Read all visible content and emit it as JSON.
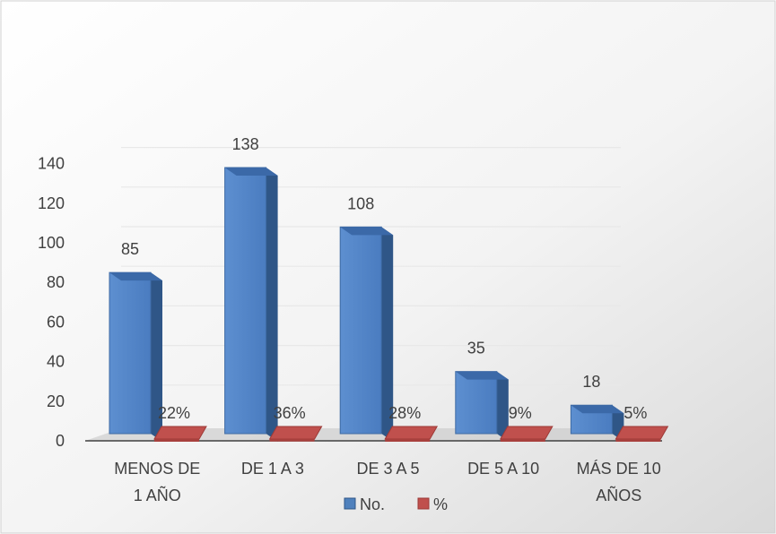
{
  "chart_data": {
    "type": "bar",
    "categories": [
      [
        "MENOS DE",
        "1 AÑO"
      ],
      [
        "DE 1 A 3"
      ],
      [
        "DE 3 A 5"
      ],
      [
        "DE 5 A 10"
      ],
      [
        "MÁS DE 10",
        "AÑOS"
      ]
    ],
    "series": [
      {
        "name": "No.",
        "values": [
          85,
          138,
          108,
          35,
          18
        ],
        "labels": [
          "85",
          "138",
          "108",
          "35",
          "18"
        ],
        "color": "#4f81bd"
      },
      {
        "name": "%",
        "values": [
          22,
          36,
          28,
          9,
          5
        ],
        "labels": [
          "22%",
          "36%",
          "28%",
          "9%",
          "5%"
        ],
        "color": "#c0504d"
      }
    ],
    "yticks": [
      "0",
      "20",
      "40",
      "60",
      "80",
      "100",
      "120",
      "140"
    ],
    "ylim": [
      0,
      140
    ],
    "grid": true,
    "legend_position": "bottom",
    "three_d": true
  },
  "colors": {
    "background_light": "#ffffff",
    "background_dark": "#dcdcdc",
    "gridline": "#e8e8e8",
    "axis_line": "#404040",
    "floor": "#b0b0b0"
  }
}
